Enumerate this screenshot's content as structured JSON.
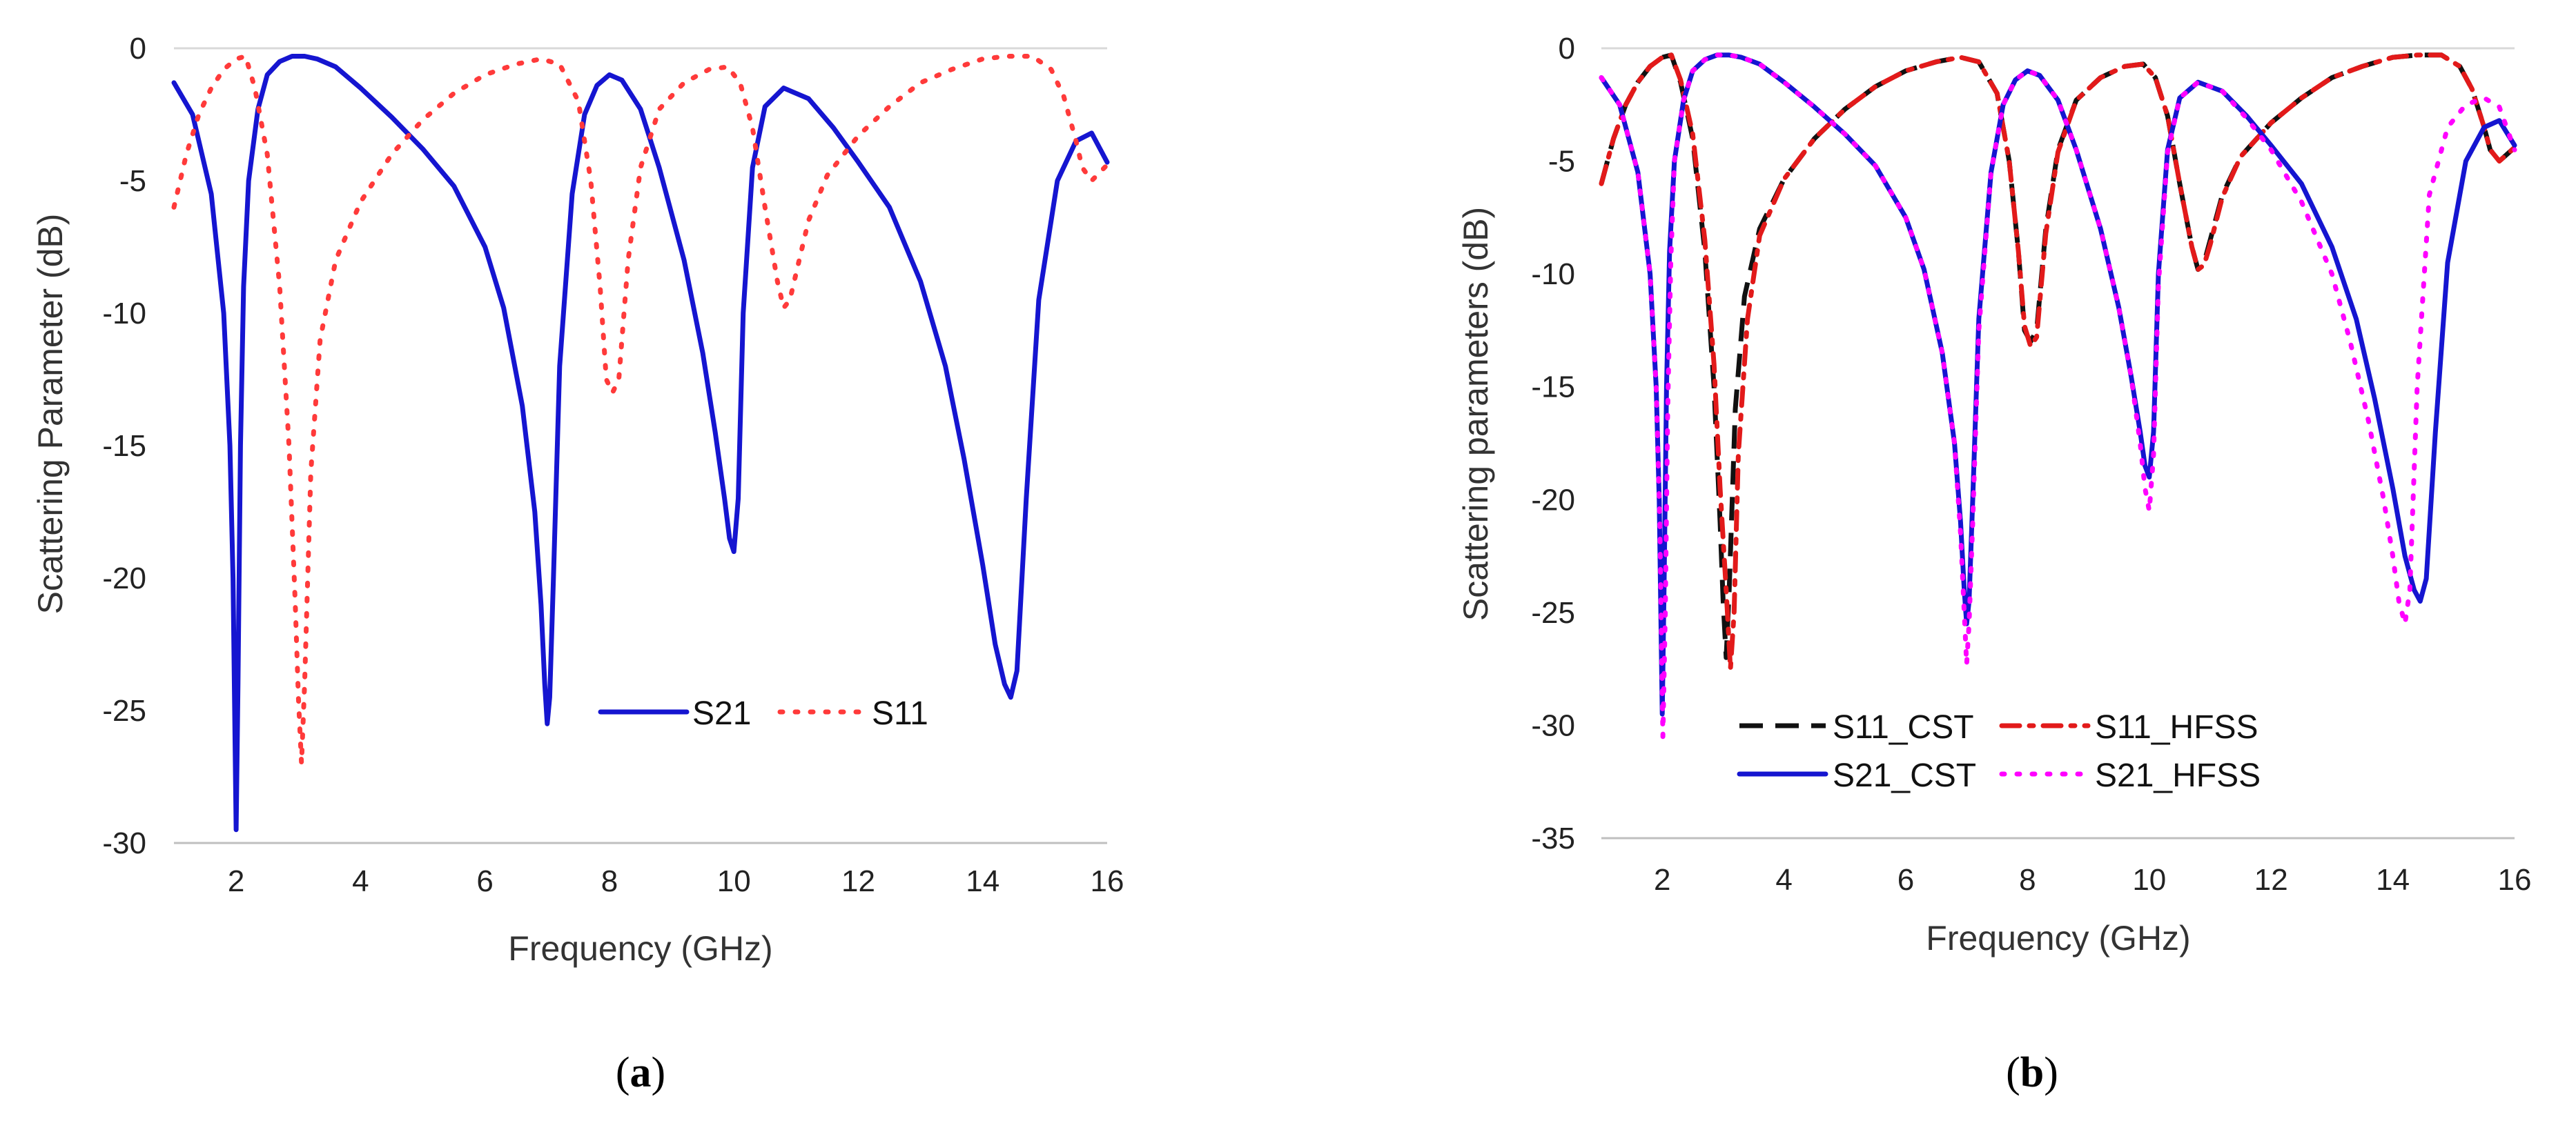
{
  "chart_data": [
    {
      "type": "line",
      "panel_label": "a",
      "xlabel": "Frequency (GHz)",
      "ylabel": "Scattering Parameter (dB)",
      "xlim": [
        1,
        16
      ],
      "ylim": [
        -30,
        0
      ],
      "xticks": [
        2,
        4,
        6,
        8,
        10,
        12,
        14,
        16
      ],
      "yticks": [
        0,
        -5,
        -10,
        -15,
        -20,
        -25,
        -30
      ],
      "legend": "inside-lower-right",
      "series": [
        {
          "name": "S21",
          "color": "#1515d0",
          "style": "solid",
          "x": [
            1.0,
            1.3,
            1.6,
            1.8,
            1.9,
            1.95,
            2.0,
            2.03,
            2.07,
            2.12,
            2.2,
            2.35,
            2.5,
            2.7,
            2.9,
            3.1,
            3.3,
            3.6,
            4.0,
            4.5,
            5.0,
            5.5,
            6.0,
            6.3,
            6.6,
            6.8,
            6.9,
            6.96,
            7.0,
            7.04,
            7.1,
            7.2,
            7.4,
            7.6,
            7.8,
            8.0,
            8.2,
            8.5,
            8.8,
            9.2,
            9.5,
            9.7,
            9.85,
            9.93,
            10.0,
            10.07,
            10.15,
            10.3,
            10.5,
            10.8,
            11.2,
            11.6,
            12.0,
            12.5,
            13.0,
            13.4,
            13.7,
            14.0,
            14.2,
            14.35,
            14.45,
            14.55,
            14.7,
            14.9,
            15.2,
            15.5,
            15.75,
            16.0
          ],
          "values": [
            -1.3,
            -2.5,
            -5.5,
            -10.0,
            -15.0,
            -20.0,
            -29.5,
            -24.0,
            -15.0,
            -9.0,
            -5.0,
            -2.3,
            -1.0,
            -0.5,
            -0.3,
            -0.3,
            -0.4,
            -0.7,
            -1.5,
            -2.6,
            -3.8,
            -5.2,
            -7.5,
            -9.8,
            -13.5,
            -17.5,
            -21.0,
            -24.0,
            -25.5,
            -24.5,
            -20.0,
            -12.0,
            -5.5,
            -2.5,
            -1.4,
            -1.0,
            -1.2,
            -2.3,
            -4.5,
            -8.0,
            -11.5,
            -14.5,
            -17.0,
            -18.5,
            -19.0,
            -17.0,
            -10.0,
            -4.5,
            -2.2,
            -1.5,
            -1.9,
            -3.0,
            -4.3,
            -6.0,
            -8.8,
            -12.0,
            -15.5,
            -19.5,
            -22.5,
            -24.0,
            -24.5,
            -23.5,
            -17.0,
            -9.5,
            -5.0,
            -3.5,
            -3.2,
            -4.3
          ]
        },
        {
          "name": "S11",
          "color": "#ff3a3a",
          "style": "dotted",
          "x": [
            1.0,
            1.2,
            1.4,
            1.6,
            1.8,
            2.0,
            2.15,
            2.3,
            2.5,
            2.7,
            2.85,
            2.95,
            3.0,
            3.05,
            3.1,
            3.2,
            3.35,
            3.6,
            4.0,
            4.5,
            5.0,
            5.5,
            6.0,
            6.5,
            6.9,
            7.2,
            7.5,
            7.7,
            7.85,
            7.95,
            8.05,
            8.15,
            8.3,
            8.5,
            8.8,
            9.2,
            9.6,
            9.9,
            10.1,
            10.3,
            10.5,
            10.7,
            10.8,
            10.9,
            11.0,
            11.2,
            11.5,
            12.0,
            12.5,
            13.0,
            13.5,
            14.0,
            14.4,
            14.8,
            15.1,
            15.3,
            15.5,
            15.6,
            15.75,
            16.0
          ],
          "values": [
            -6.0,
            -4.0,
            -2.5,
            -1.5,
            -0.8,
            -0.4,
            -0.3,
            -1.5,
            -4.0,
            -9.0,
            -15.0,
            -21.0,
            -24.5,
            -27.0,
            -24.0,
            -16.0,
            -11.0,
            -8.0,
            -5.8,
            -4.0,
            -2.7,
            -1.7,
            -1.0,
            -0.6,
            -0.4,
            -0.6,
            -2.0,
            -5.0,
            -9.0,
            -12.5,
            -13.0,
            -12.5,
            -8.0,
            -4.5,
            -2.3,
            -1.3,
            -0.8,
            -0.7,
            -1.3,
            -3.0,
            -6.0,
            -8.8,
            -9.8,
            -9.5,
            -8.5,
            -6.5,
            -4.8,
            -3.3,
            -2.2,
            -1.3,
            -0.8,
            -0.4,
            -0.3,
            -0.3,
            -0.8,
            -1.8,
            -3.5,
            -4.5,
            -5.0,
            -4.4
          ]
        }
      ]
    },
    {
      "type": "line",
      "panel_label": "b",
      "xlabel": "Frequency (GHz)",
      "ylabel": "Scattering parameters (dB)",
      "xlim": [
        1,
        16
      ],
      "ylim": [
        -35,
        0
      ],
      "xticks": [
        2,
        4,
        6,
        8,
        10,
        12,
        14,
        16
      ],
      "yticks": [
        0,
        -5,
        -10,
        -15,
        -20,
        -25,
        -30,
        -35
      ],
      "legend": "inside-lower-left",
      "series": [
        {
          "name": "S11_CST",
          "color": "#111111",
          "style": "dashed",
          "x": [
            1.0,
            1.2,
            1.4,
            1.6,
            1.8,
            2.0,
            2.15,
            2.3,
            2.5,
            2.7,
            2.85,
            2.95,
            3.0,
            3.05,
            3.1,
            3.2,
            3.35,
            3.6,
            4.0,
            4.5,
            5.0,
            5.5,
            6.0,
            6.5,
            6.9,
            7.2,
            7.5,
            7.7,
            7.85,
            7.95,
            8.05,
            8.15,
            8.3,
            8.5,
            8.8,
            9.2,
            9.6,
            9.9,
            10.1,
            10.3,
            10.5,
            10.7,
            10.8,
            10.9,
            11.0,
            11.2,
            11.5,
            12.0,
            12.5,
            13.0,
            13.5,
            14.0,
            14.4,
            14.8,
            15.1,
            15.3,
            15.5,
            15.6,
            15.75,
            16.0
          ],
          "values": [
            -6.0,
            -4.0,
            -2.5,
            -1.5,
            -0.8,
            -0.4,
            -0.3,
            -1.5,
            -4.0,
            -9.0,
            -15.0,
            -21.0,
            -24.5,
            -27.0,
            -24.0,
            -16.0,
            -11.0,
            -8.0,
            -5.8,
            -4.0,
            -2.7,
            -1.7,
            -1.0,
            -0.6,
            -0.4,
            -0.6,
            -2.0,
            -5.0,
            -9.0,
            -12.5,
            -13.0,
            -12.5,
            -8.0,
            -4.5,
            -2.3,
            -1.3,
            -0.8,
            -0.7,
            -1.3,
            -3.0,
            -6.0,
            -8.8,
            -9.8,
            -9.5,
            -8.5,
            -6.5,
            -4.8,
            -3.3,
            -2.2,
            -1.3,
            -0.8,
            -0.4,
            -0.3,
            -0.3,
            -0.8,
            -1.8,
            -3.5,
            -4.5,
            -5.0,
            -4.4
          ]
        },
        {
          "name": "S11_HFSS",
          "color": "#e21a1a",
          "style": "dashdot",
          "x": [
            1.0,
            1.2,
            1.4,
            1.6,
            1.8,
            2.0,
            2.15,
            2.3,
            2.5,
            2.7,
            2.85,
            2.95,
            3.05,
            3.12,
            3.18,
            3.25,
            3.4,
            3.6,
            4.0,
            4.5,
            5.0,
            5.5,
            6.0,
            6.5,
            6.9,
            7.2,
            7.5,
            7.7,
            7.85,
            7.95,
            8.05,
            8.15,
            8.3,
            8.5,
            8.8,
            9.2,
            9.6,
            9.9,
            10.1,
            10.3,
            10.5,
            10.7,
            10.8,
            10.9,
            11.0,
            11.2,
            11.5,
            12.0,
            12.5,
            13.0,
            13.5,
            14.0,
            14.4,
            14.8,
            15.1,
            15.3,
            15.5,
            15.6,
            15.75,
            16.0
          ],
          "values": [
            -6.0,
            -4.0,
            -2.5,
            -1.5,
            -0.8,
            -0.4,
            -0.3,
            -1.4,
            -3.8,
            -8.5,
            -14.0,
            -19.5,
            -24.0,
            -27.5,
            -25.0,
            -18.0,
            -12.0,
            -8.3,
            -5.8,
            -4.0,
            -2.7,
            -1.7,
            -1.0,
            -0.6,
            -0.4,
            -0.6,
            -2.0,
            -5.0,
            -9.0,
            -12.3,
            -13.2,
            -12.8,
            -8.2,
            -4.6,
            -2.3,
            -1.3,
            -0.8,
            -0.7,
            -1.3,
            -3.0,
            -6.0,
            -8.8,
            -9.8,
            -9.6,
            -8.7,
            -6.6,
            -4.8,
            -3.3,
            -2.2,
            -1.3,
            -0.8,
            -0.4,
            -0.3,
            -0.3,
            -0.8,
            -1.8,
            -3.5,
            -4.5,
            -5.0,
            -4.4
          ]
        },
        {
          "name": "S21_CST",
          "color": "#1515d0",
          "style": "solid",
          "x": [
            1.0,
            1.3,
            1.6,
            1.8,
            1.9,
            1.95,
            2.0,
            2.03,
            2.07,
            2.12,
            2.2,
            2.35,
            2.5,
            2.7,
            2.9,
            3.1,
            3.3,
            3.6,
            4.0,
            4.5,
            5.0,
            5.5,
            6.0,
            6.3,
            6.6,
            6.8,
            6.9,
            6.96,
            7.0,
            7.04,
            7.1,
            7.2,
            7.4,
            7.6,
            7.8,
            8.0,
            8.2,
            8.5,
            8.8,
            9.2,
            9.5,
            9.7,
            9.85,
            9.93,
            10.0,
            10.07,
            10.15,
            10.3,
            10.5,
            10.8,
            11.2,
            11.6,
            12.0,
            12.5,
            13.0,
            13.4,
            13.7,
            14.0,
            14.2,
            14.35,
            14.45,
            14.55,
            14.7,
            14.9,
            15.2,
            15.5,
            15.75,
            16.0
          ],
          "values": [
            -1.3,
            -2.5,
            -5.5,
            -10.0,
            -15.0,
            -20.0,
            -29.5,
            -24.0,
            -15.0,
            -9.0,
            -5.0,
            -2.3,
            -1.0,
            -0.5,
            -0.3,
            -0.3,
            -0.4,
            -0.7,
            -1.5,
            -2.6,
            -3.8,
            -5.2,
            -7.5,
            -9.8,
            -13.5,
            -17.5,
            -21.0,
            -24.0,
            -25.5,
            -24.5,
            -20.0,
            -12.0,
            -5.5,
            -2.5,
            -1.4,
            -1.0,
            -1.2,
            -2.3,
            -4.5,
            -8.0,
            -11.5,
            -14.5,
            -17.0,
            -18.5,
            -19.0,
            -17.0,
            -10.0,
            -4.5,
            -2.2,
            -1.5,
            -1.9,
            -3.0,
            -4.3,
            -6.0,
            -8.8,
            -12.0,
            -15.5,
            -19.5,
            -22.5,
            -24.0,
            -24.5,
            -23.5,
            -17.0,
            -9.5,
            -5.0,
            -3.5,
            -3.2,
            -4.3
          ]
        },
        {
          "name": "S21_HFSS",
          "color": "#ff00ff",
          "style": "dotted",
          "x": [
            1.0,
            1.3,
            1.6,
            1.8,
            1.9,
            1.96,
            2.01,
            2.05,
            2.09,
            2.14,
            2.2,
            2.35,
            2.5,
            2.7,
            2.9,
            3.1,
            3.3,
            3.6,
            4.0,
            4.5,
            5.0,
            5.5,
            6.0,
            6.3,
            6.6,
            6.8,
            6.9,
            6.96,
            7.0,
            7.04,
            7.1,
            7.2,
            7.4,
            7.6,
            7.8,
            8.0,
            8.2,
            8.5,
            8.8,
            9.2,
            9.5,
            9.7,
            9.85,
            9.93,
            10.0,
            10.07,
            10.15,
            10.3,
            10.5,
            10.8,
            11.2,
            11.6,
            12.0,
            12.5,
            13.0,
            13.3,
            13.6,
            13.85,
            14.0,
            14.1,
            14.2,
            14.28,
            14.4,
            14.6,
            14.9,
            15.2,
            15.5,
            15.75,
            16.0
          ],
          "values": [
            -1.3,
            -2.5,
            -5.5,
            -10.0,
            -15.0,
            -21.0,
            -30.5,
            -25.0,
            -16.0,
            -9.5,
            -5.0,
            -2.3,
            -1.0,
            -0.5,
            -0.3,
            -0.3,
            -0.4,
            -0.7,
            -1.5,
            -2.6,
            -3.8,
            -5.2,
            -7.5,
            -9.8,
            -13.5,
            -17.5,
            -21.5,
            -25.0,
            -27.3,
            -25.5,
            -21.0,
            -12.5,
            -5.5,
            -2.5,
            -1.4,
            -1.0,
            -1.2,
            -2.3,
            -4.5,
            -8.0,
            -11.5,
            -14.5,
            -17.5,
            -19.5,
            -20.5,
            -18.0,
            -10.5,
            -4.6,
            -2.2,
            -1.5,
            -1.9,
            -3.1,
            -4.5,
            -6.8,
            -10.0,
            -13.0,
            -16.5,
            -20.0,
            -22.5,
            -24.5,
            -25.5,
            -24.0,
            -15.0,
            -6.5,
            -3.5,
            -2.5,
            -2.2,
            -2.6,
            -4.5
          ]
        }
      ]
    }
  ]
}
